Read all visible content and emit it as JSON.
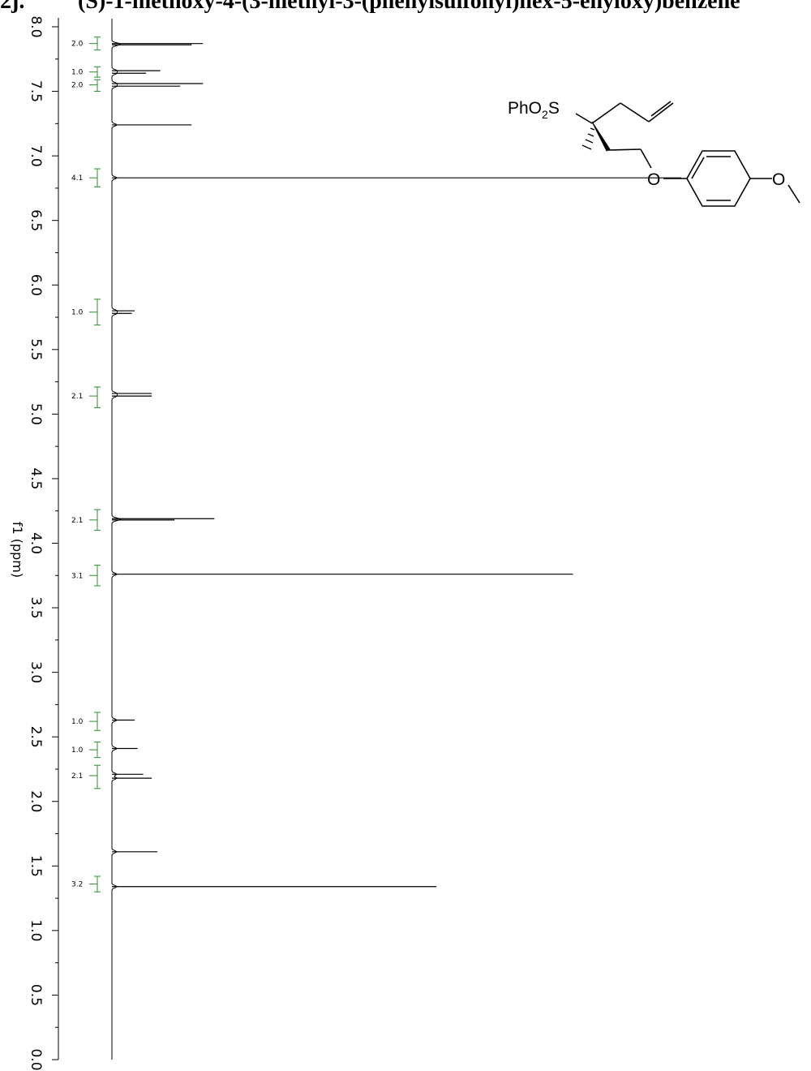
{
  "header": {
    "label": "2j.",
    "compound_name": "(S)-1-methoxy-4-(3-methyl-3-(phenylsulfonyl)hex-5-enyloxy)benzene"
  },
  "molecule": {
    "sulfonyl_label": "PhO",
    "sulfonyl_sub": "2",
    "sulfonyl_end": "S",
    "ether_o": "O",
    "methoxy_o": "O"
  },
  "chart_data": {
    "type": "line",
    "title": "",
    "xlabel": "f1 (ppm)",
    "ylabel": "",
    "orientation": "vertical-ppm-axis",
    "xlim": [
      8.0,
      0.0
    ],
    "ticks": [
      "8.0",
      "7.5",
      "7.0",
      "6.5",
      "6.0",
      "5.5",
      "5.0",
      "4.5",
      "4.0",
      "3.5",
      "3.0",
      "2.5",
      "2.0",
      "1.5",
      "1.0",
      "0.5",
      "0.0"
    ],
    "tick_values": [
      8.0,
      7.5,
      7.0,
      6.5,
      6.0,
      5.5,
      5.0,
      4.5,
      4.0,
      3.5,
      3.0,
      2.5,
      2.0,
      1.5,
      1.0,
      0.5,
      0.0
    ],
    "peaks": [
      {
        "ppm": 7.87,
        "intensity": 0.16
      },
      {
        "ppm": 7.86,
        "intensity": 0.14
      },
      {
        "ppm": 7.66,
        "intensity": 0.085
      },
      {
        "ppm": 7.64,
        "intensity": 0.06
      },
      {
        "ppm": 7.56,
        "intensity": 0.16
      },
      {
        "ppm": 7.54,
        "intensity": 0.12
      },
      {
        "ppm": 7.24,
        "intensity": 0.14
      },
      {
        "ppm": 6.83,
        "intensity": 1.0
      },
      {
        "ppm": 5.8,
        "intensity": 0.04
      },
      {
        "ppm": 5.78,
        "intensity": 0.035
      },
      {
        "ppm": 5.16,
        "intensity": 0.07
      },
      {
        "ppm": 5.14,
        "intensity": 0.07
      },
      {
        "ppm": 4.19,
        "intensity": 0.18
      },
      {
        "ppm": 4.18,
        "intensity": 0.11
      },
      {
        "ppm": 3.76,
        "intensity": 0.81
      },
      {
        "ppm": 2.63,
        "intensity": 0.04
      },
      {
        "ppm": 2.41,
        "intensity": 0.045
      },
      {
        "ppm": 2.21,
        "intensity": 0.055
      },
      {
        "ppm": 2.18,
        "intensity": 0.07
      },
      {
        "ppm": 1.61,
        "intensity": 0.08
      },
      {
        "ppm": 1.34,
        "intensity": 0.57
      }
    ],
    "integrals": [
      {
        "ppm": 7.87,
        "value": "2.0",
        "start": 7.92,
        "end": 7.82
      },
      {
        "ppm": 7.65,
        "value": "1.0",
        "start": 7.69,
        "end": 7.61
      },
      {
        "ppm": 7.55,
        "value": "2.0",
        "start": 7.59,
        "end": 7.5
      },
      {
        "ppm": 6.83,
        "value": "4.1",
        "start": 6.9,
        "end": 6.76
      },
      {
        "ppm": 5.79,
        "value": "1.0",
        "start": 5.89,
        "end": 5.69
      },
      {
        "ppm": 5.14,
        "value": "2.1",
        "start": 5.21,
        "end": 5.05
      },
      {
        "ppm": 4.18,
        "value": "2.1",
        "start": 4.26,
        "end": 4.1
      },
      {
        "ppm": 3.75,
        "value": "3.1",
        "start": 3.83,
        "end": 3.67
      },
      {
        "ppm": 2.62,
        "value": "1.0",
        "start": 2.69,
        "end": 2.55
      },
      {
        "ppm": 2.4,
        "value": "1.0",
        "start": 2.46,
        "end": 2.34
      },
      {
        "ppm": 2.2,
        "value": "2.1",
        "start": 2.28,
        "end": 2.1
      },
      {
        "ppm": 1.36,
        "value": "3.2",
        "start": 1.42,
        "end": 1.3
      }
    ],
    "colors": {
      "spectrum": "#000000",
      "integral": "#2e8b2e",
      "axis": "#000000"
    }
  }
}
